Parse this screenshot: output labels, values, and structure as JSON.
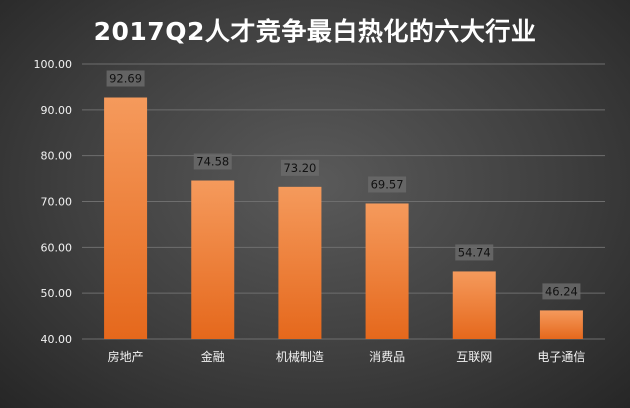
{
  "chart_data": {
    "type": "bar",
    "title": "2017Q2人才竞争最白热化的六大行业",
    "categories": [
      "房地产",
      "金融",
      "机械制造",
      "消费品",
      "互联网",
      "电子通信"
    ],
    "values": [
      92.69,
      74.58,
      73.2,
      69.57,
      54.74,
      46.24
    ],
    "value_labels": [
      "92.69",
      "74.58",
      "73.20",
      "69.57",
      "54.74",
      "46.24"
    ],
    "ylim": [
      40,
      100
    ],
    "yticks": [
      "40.00",
      "50.00",
      "60.00",
      "70.00",
      "80.00",
      "90.00",
      "100.00"
    ],
    "xlabel": "",
    "ylabel": "",
    "grid": true,
    "legend": "none",
    "colors": {
      "bar_top": "#f59a5c",
      "bar_bottom": "#e5681c",
      "grid": "#6e6e6e",
      "background_center": "#5a5a5a",
      "background_edge": "#262626",
      "data_label_background": "#6a6a6a"
    }
  }
}
